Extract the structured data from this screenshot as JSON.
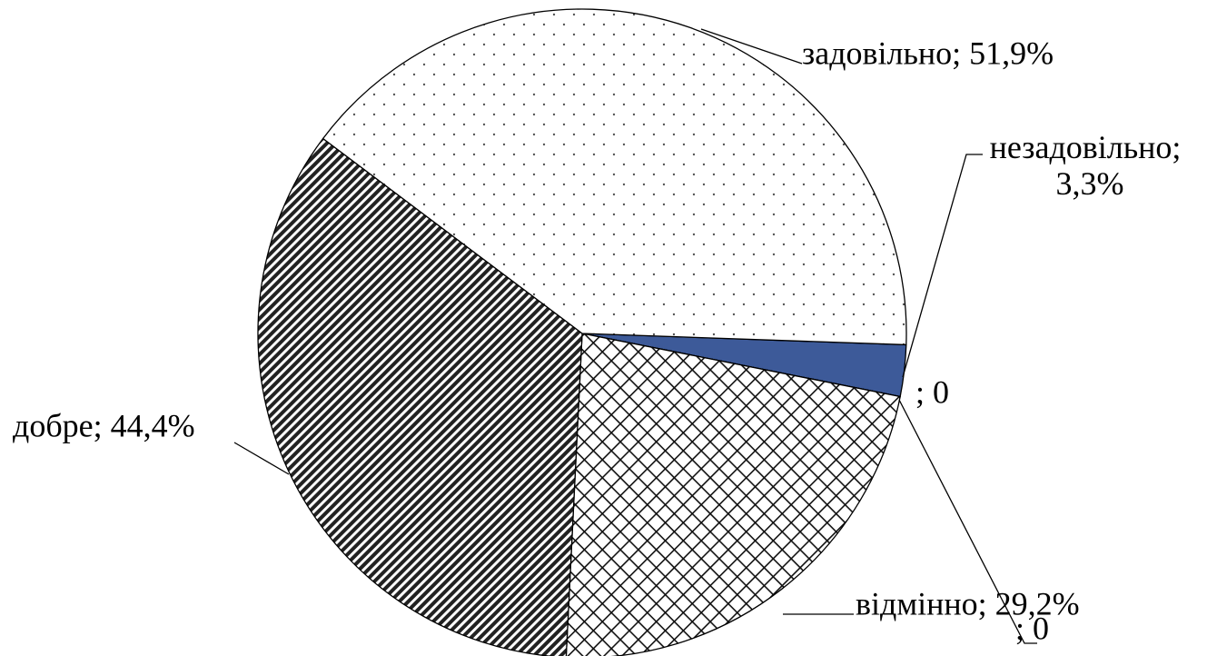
{
  "chart_data": {
    "type": "pie",
    "categories": [
      null,
      null,
      null,
      null,
      null,
      null
    ],
    "values": [
      3.3,
      0,
      0,
      29.2,
      44.4,
      51.9
    ],
    "value_labels": [
      "незадовільно; 3,3%",
      "; 0",
      "; 0",
      "відмінно; 29,2%",
      "добре; 44,4%",
      "задовільно; 51,9%"
    ],
    "legend": false
  }
}
